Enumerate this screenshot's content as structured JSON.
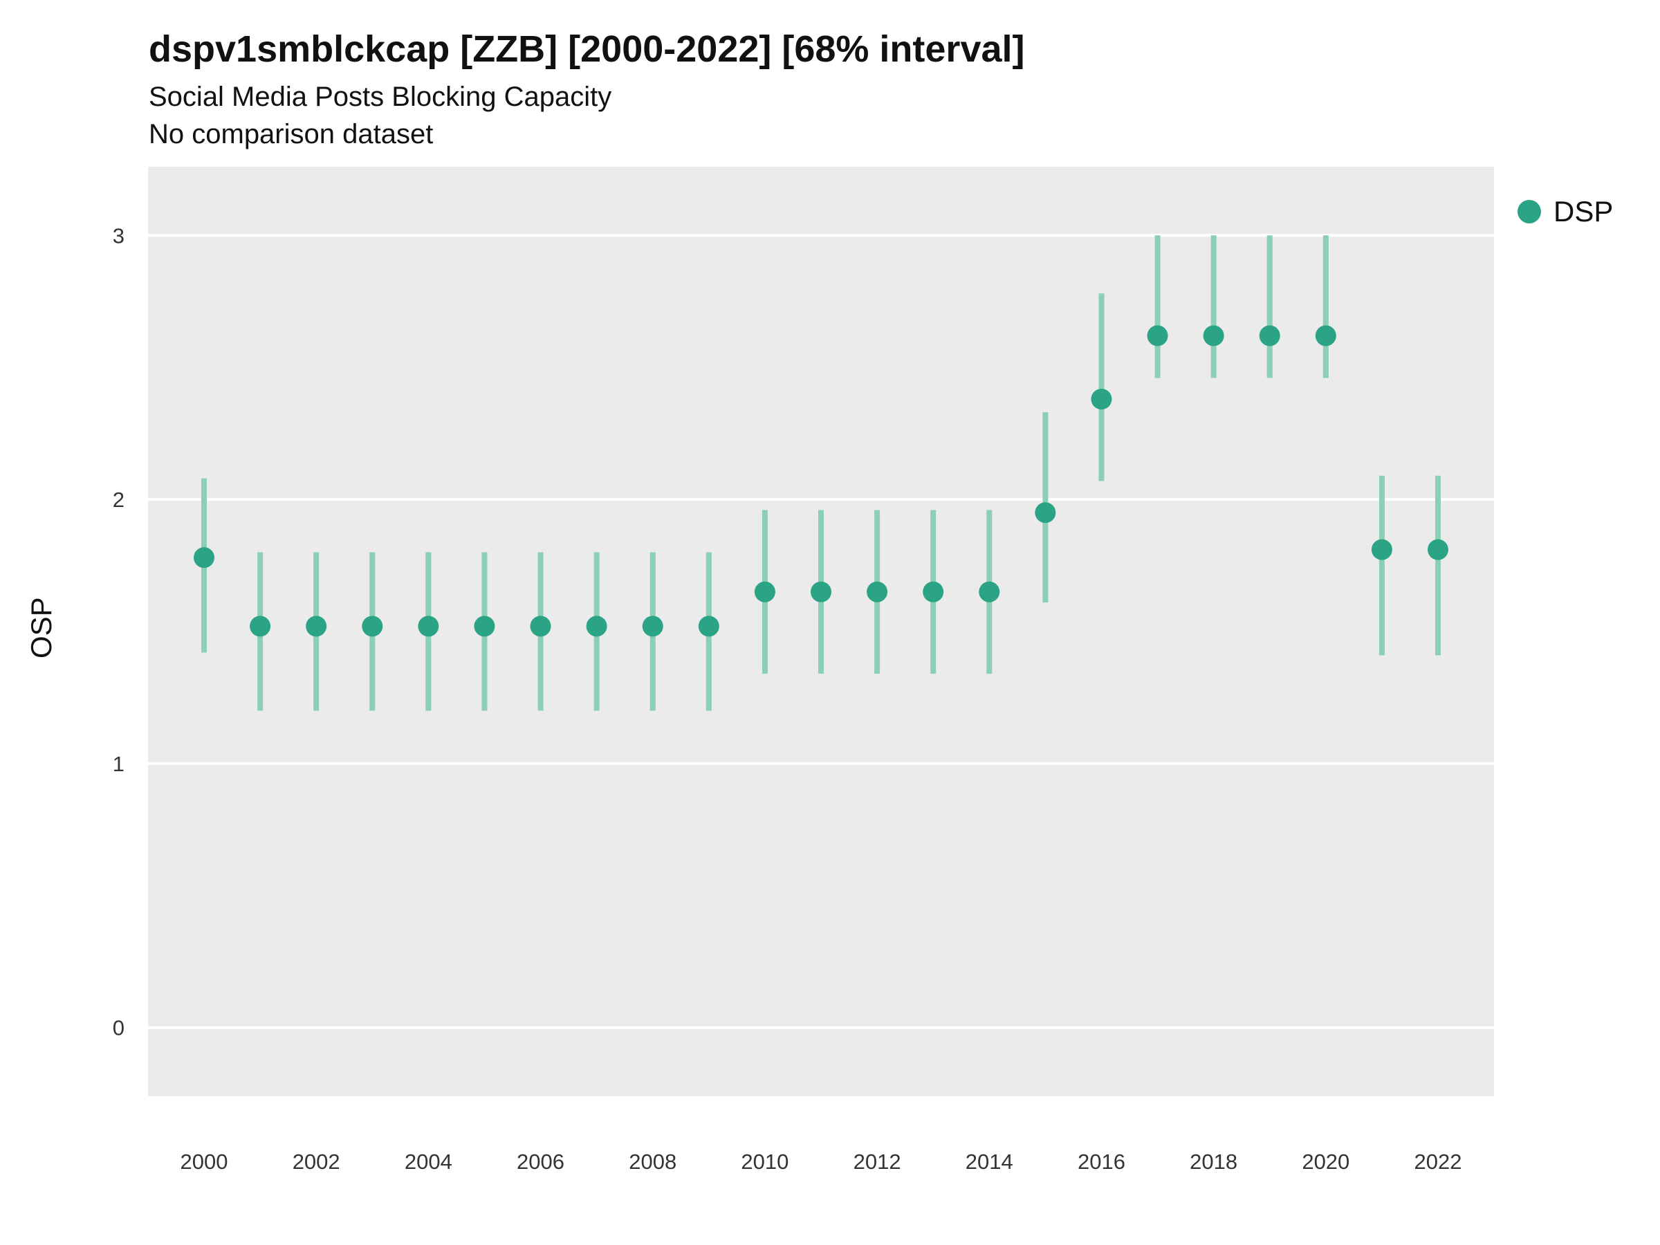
{
  "chart": {
    "title": "dspv1smblckcap [ZZB] [2000-2022] [68% interval]",
    "subtitle": "Social Media Posts Blocking Capacity",
    "note": "No comparison dataset",
    "ylabel": "OSP"
  },
  "legend": {
    "label": "DSP"
  },
  "chart_data": {
    "type": "scatter",
    "title": "dspv1smblckcap [ZZB] [2000-2022] [68% interval]",
    "subtitle": "Social Media Posts Blocking Capacity",
    "note": "No comparison dataset",
    "xlabel": "",
    "ylabel": "OSP",
    "series_name": "DSP",
    "error_interval": "68%",
    "x": [
      2000,
      2001,
      2002,
      2003,
      2004,
      2005,
      2006,
      2007,
      2008,
      2009,
      2010,
      2011,
      2012,
      2013,
      2014,
      2015,
      2016,
      2017,
      2018,
      2019,
      2020,
      2021,
      2022
    ],
    "y": [
      1.78,
      1.52,
      1.52,
      1.52,
      1.52,
      1.52,
      1.52,
      1.52,
      1.52,
      1.52,
      1.65,
      1.65,
      1.65,
      1.65,
      1.65,
      1.95,
      2.38,
      2.62,
      2.62,
      2.62,
      2.62,
      1.81,
      1.81
    ],
    "lower": [
      1.42,
      1.2,
      1.2,
      1.2,
      1.2,
      1.2,
      1.2,
      1.2,
      1.2,
      1.2,
      1.34,
      1.34,
      1.34,
      1.34,
      1.34,
      1.61,
      2.07,
      2.46,
      2.46,
      2.46,
      2.46,
      1.41,
      1.41
    ],
    "upper": [
      2.08,
      1.8,
      1.8,
      1.8,
      1.8,
      1.8,
      1.8,
      1.8,
      1.8,
      1.8,
      1.96,
      1.96,
      1.96,
      1.96,
      1.96,
      2.33,
      2.78,
      3.0,
      3.0,
      3.0,
      3.0,
      2.09,
      2.09
    ],
    "x_ticks": [
      2000,
      2002,
      2004,
      2006,
      2008,
      2010,
      2012,
      2014,
      2016,
      2018,
      2020,
      2022
    ],
    "y_ticks": [
      0,
      1,
      2,
      3
    ],
    "ylim": [
      -0.26,
      3.26
    ],
    "grid": true,
    "legend_position": "right",
    "point_color": "#2BA385",
    "interval_color": "#8BCFB4",
    "plot_bg": "#EBEBEB",
    "grid_color": "#FFFFFF",
    "tick_label_color": "#333333"
  }
}
